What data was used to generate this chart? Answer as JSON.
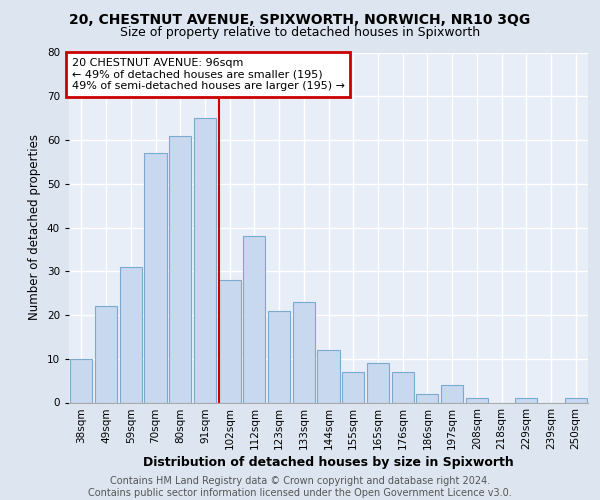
{
  "title": "20, CHESTNUT AVENUE, SPIXWORTH, NORWICH, NR10 3QG",
  "subtitle": "Size of property relative to detached houses in Spixworth",
  "xlabel": "Distribution of detached houses by size in Spixworth",
  "ylabel": "Number of detached properties",
  "categories": [
    "38sqm",
    "49sqm",
    "59sqm",
    "70sqm",
    "80sqm",
    "91sqm",
    "102sqm",
    "112sqm",
    "123sqm",
    "133sqm",
    "144sqm",
    "155sqm",
    "165sqm",
    "176sqm",
    "186sqm",
    "197sqm",
    "208sqm",
    "218sqm",
    "229sqm",
    "239sqm",
    "250sqm"
  ],
  "values": [
    10,
    22,
    31,
    57,
    61,
    65,
    28,
    38,
    21,
    23,
    12,
    7,
    9,
    7,
    2,
    4,
    1,
    0,
    1,
    0,
    1
  ],
  "bar_color": "#c8d8ef",
  "bar_edge_color": "#7aaad0",
  "vline_x": 5.57,
  "vline_color": "#cc0000",
  "annotation_line1": "20 CHESTNUT AVENUE: 96sqm",
  "annotation_line2": "← 49% of detached houses are smaller (195)",
  "annotation_line3": "49% of semi-detached houses are larger (195) →",
  "annotation_box_color": "#cc0000",
  "ylim": [
    0,
    80
  ],
  "yticks": [
    0,
    10,
    20,
    30,
    40,
    50,
    60,
    70,
    80
  ],
  "bg_color": "#dde6f0",
  "plot_bg_color": "#e8eef8",
  "footer_text": "Contains HM Land Registry data © Crown copyright and database right 2024.\nContains public sector information licensed under the Open Government Licence v3.0.",
  "title_fontsize": 10,
  "subtitle_fontsize": 9,
  "xlabel_fontsize": 9,
  "ylabel_fontsize": 8.5,
  "tick_fontsize": 7.5,
  "annotation_fontsize": 8,
  "footer_fontsize": 7
}
